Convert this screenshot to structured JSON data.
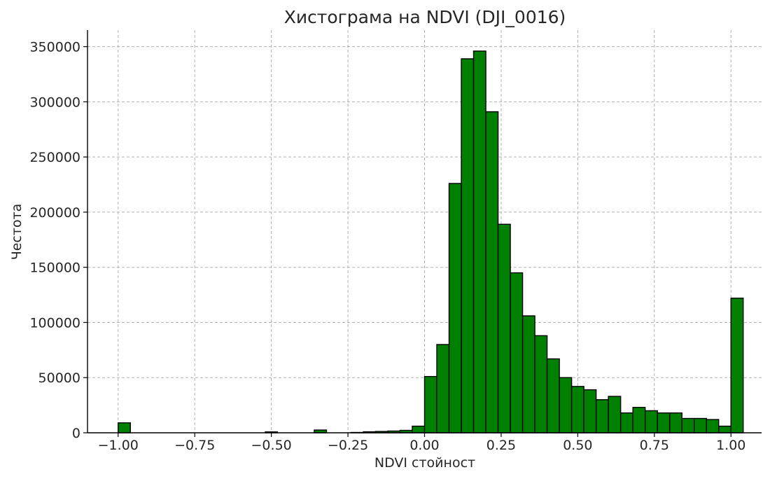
{
  "chart_data": {
    "type": "bar",
    "title": "Хистограма на NDVI (DJI_0016)",
    "xlabel": "NDVI стойност",
    "ylabel": "Честота",
    "xlim": [
      -1.1,
      1.1
    ],
    "ylim": [
      0,
      365000
    ],
    "grid": true,
    "bar_color": "#008000",
    "edge_color": "#000000",
    "x_ticks": [
      -1.0,
      -0.75,
      -0.5,
      -0.25,
      0.0,
      0.25,
      0.5,
      0.75,
      1.0
    ],
    "x_tick_labels": [
      "−1.00",
      "−0.75",
      "−0.50",
      "−0.25",
      "0.00",
      "0.25",
      "0.50",
      "0.75",
      "1.00"
    ],
    "y_ticks": [
      0,
      50000,
      100000,
      150000,
      200000,
      250000,
      300000,
      350000
    ],
    "y_tick_labels": [
      "0",
      "50000",
      "100000",
      "150000",
      "200000",
      "250000",
      "300000",
      "350000"
    ],
    "bin_width": 0.04,
    "bins": [
      {
        "x0": -1.0,
        "value": 9000
      },
      {
        "x0": -0.52,
        "value": 800
      },
      {
        "x0": -0.36,
        "value": 2500
      },
      {
        "x0": -0.24,
        "value": 300
      },
      {
        "x0": -0.2,
        "value": 900
      },
      {
        "x0": -0.16,
        "value": 1200
      },
      {
        "x0": -0.12,
        "value": 1600
      },
      {
        "x0": -0.08,
        "value": 2200
      },
      {
        "x0": -0.04,
        "value": 6000
      },
      {
        "x0": 0.0,
        "value": 51000
      },
      {
        "x0": 0.04,
        "value": 80000
      },
      {
        "x0": 0.08,
        "value": 226000
      },
      {
        "x0": 0.12,
        "value": 339000
      },
      {
        "x0": 0.16,
        "value": 346000
      },
      {
        "x0": 0.2,
        "value": 291000
      },
      {
        "x0": 0.24,
        "value": 189000
      },
      {
        "x0": 0.28,
        "value": 145000
      },
      {
        "x0": 0.32,
        "value": 106000
      },
      {
        "x0": 0.36,
        "value": 88000
      },
      {
        "x0": 0.4,
        "value": 67000
      },
      {
        "x0": 0.44,
        "value": 50000
      },
      {
        "x0": 0.48,
        "value": 42000
      },
      {
        "x0": 0.52,
        "value": 39000
      },
      {
        "x0": 0.56,
        "value": 30000
      },
      {
        "x0": 0.6,
        "value": 33000
      },
      {
        "x0": 0.64,
        "value": 18000
      },
      {
        "x0": 0.68,
        "value": 23000
      },
      {
        "x0": 0.72,
        "value": 20000
      },
      {
        "x0": 0.76,
        "value": 18000
      },
      {
        "x0": 0.8,
        "value": 18000
      },
      {
        "x0": 0.84,
        "value": 13000
      },
      {
        "x0": 0.88,
        "value": 13000
      },
      {
        "x0": 0.92,
        "value": 12000
      },
      {
        "x0": 0.96,
        "value": 6000
      },
      {
        "x0": 1.0,
        "value": 122000
      }
    ]
  }
}
